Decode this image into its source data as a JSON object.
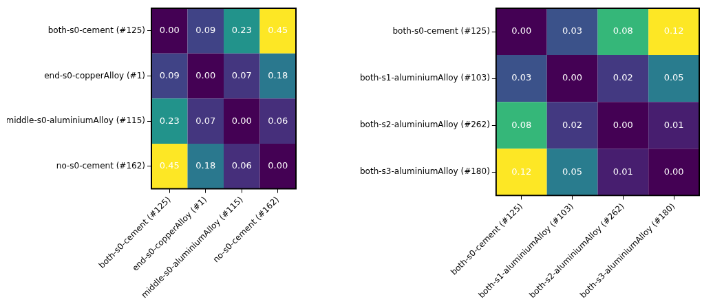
{
  "chart_data": [
    {
      "type": "heatmap",
      "categories": [
        "both-s0-cement (#125)",
        "end-s0-copperAlloy (#1)",
        "middle-s0-aluminiumAlloy (#115)",
        "no-s0-cement (#162)"
      ],
      "y_categories": [
        "both-s0-cement (#125)",
        "end-s0-copperAlloy (#1)",
        "middle-s0-aluminiumAlloy (#115)",
        "no-s0-cement (#162)"
      ],
      "data_labels": true,
      "cells": [
        [
          0.0,
          0.09,
          0.23,
          0.45
        ],
        [
          0.09,
          0.0,
          0.07,
          0.18
        ],
        [
          0.23,
          0.07,
          0.0,
          0.06
        ],
        [
          0.45,
          0.18,
          0.06,
          0.0
        ]
      ],
      "cell_labels": [
        [
          "0.00",
          "0.09",
          "0.23",
          "0.45"
        ],
        [
          "0.09",
          "0.00",
          "0.07",
          "0.18"
        ],
        [
          "0.23",
          "0.07",
          "0.00",
          "0.06"
        ],
        [
          "0.45",
          "0.18",
          "0.06",
          "0.00"
        ]
      ]
    },
    {
      "type": "heatmap",
      "categories": [
        "both-s0-cement (#125)",
        "both-s1-aluminiumAlloy (#103)",
        "both-s2-aluminiumAlloy (#262)",
        "both-s3-aluminiumAlloy (#180)"
      ],
      "y_categories": [
        "both-s0-cement (#125)",
        "both-s1-aluminiumAlloy (#103)",
        "both-s2-aluminiumAlloy (#262)",
        "both-s3-aluminiumAlloy (#180)"
      ],
      "data_labels": true,
      "cells": [
        [
          0.0,
          0.03,
          0.08,
          0.12
        ],
        [
          0.03,
          0.0,
          0.02,
          0.05
        ],
        [
          0.08,
          0.02,
          0.0,
          0.01
        ],
        [
          0.12,
          0.05,
          0.01,
          0.0
        ]
      ],
      "cell_labels": [
        [
          "0.00",
          "0.03",
          "0.08",
          "0.12"
        ],
        [
          "0.03",
          "0.00",
          "0.02",
          "0.05"
        ],
        [
          "0.08",
          "0.02",
          "0.00",
          "0.01"
        ],
        [
          "0.12",
          "0.05",
          "0.01",
          "0.00"
        ]
      ]
    }
  ]
}
